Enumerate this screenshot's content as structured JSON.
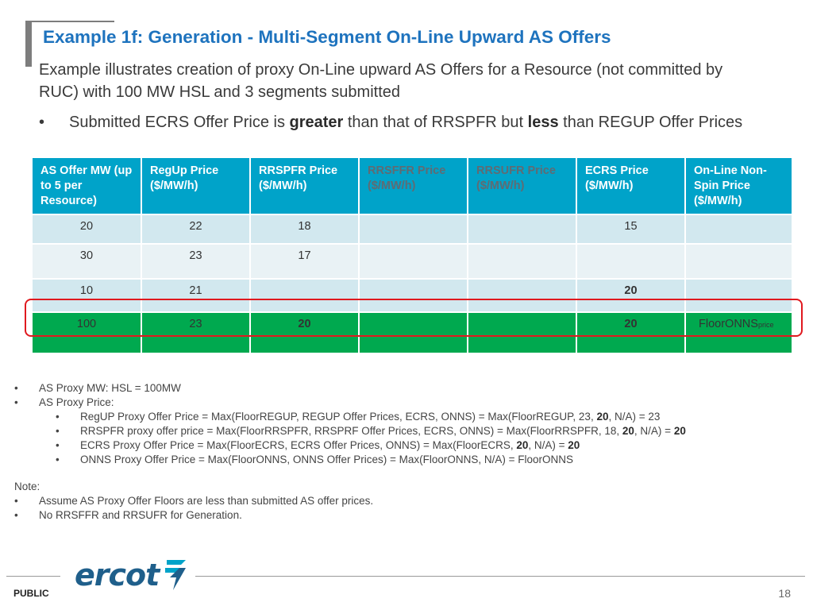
{
  "title": "Example 1f: Generation - Multi-Segment On-Line Upward AS Offers",
  "subtitle": "Example illustrates creation of proxy On-Line upward AS Offers for a Resource (not committed by RUC) with 100 MW HSL and 3 segments submitted",
  "bullet": {
    "part1": "Submitted ECRS Offer Price is ",
    "bold1": "greater",
    "part2": " than that of RRSPFR but ",
    "bold2": "less",
    "part3": " than REGUP Offer Prices"
  },
  "table": {
    "headers": [
      "AS Offer MW (up to 5 per Resource)",
      "RegUp Price ($/MW/h)",
      "RRSPFR Price ($/MW/h)",
      "RRSFFR Price ($/MW/h)",
      "RRSUFR Price ($/MW/h)",
      "ECRS Price ($/MW/h)",
      "On-Line Non-Spin Price ($/MW/h)"
    ],
    "rows": [
      [
        "20",
        "22",
        "18",
        "",
        "",
        "15",
        ""
      ],
      [
        "30",
        "23",
        "17",
        "",
        "",
        "",
        ""
      ],
      [
        "10",
        "21",
        "",
        "",
        "",
        "20",
        ""
      ],
      [
        "100",
        "23",
        "20",
        "",
        "",
        "20",
        "FloorONNS"
      ]
    ],
    "floor_subscript": "price"
  },
  "notes": {
    "b1": "AS Proxy MW: HSL = 100MW",
    "b2": "AS Proxy Price:",
    "sub1_pre": "RegUP Proxy Offer Price = Max(FloorREGUP, REGUP Offer Prices, ECRS, ONNS) = Max(FloorREGUP, 23, ",
    "sub1_bold": "20",
    "sub1_post": ", N/A) = 23",
    "sub2_pre": "RRSPFR proxy offer price = Max(FloorRRSPFR, RRSPRF Offer Prices, ECRS, ONNS) = Max(FloorRRSPFR, 18, ",
    "sub2_bold": "20",
    "sub2_mid": ", N/A) = ",
    "sub2_bold2": "20",
    "sub3_pre": "ECRS Proxy Offer Price = Max(FloorECRS, ECRS Offer Prices, ONNS) = Max(FloorECRS, ",
    "sub3_bold": "20",
    "sub3_mid": ", N/A) = ",
    "sub3_bold2": "20",
    "sub4": "ONNS Proxy Offer Price = Max(FloorONNS, ONNS Offer Prices) = Max(FloorONNS, N/A) = FloorONNS"
  },
  "note_block": {
    "heading": "Note:",
    "items": [
      "Assume AS Proxy Offer Floors are less than submitted AS offer prices.",
      "No RRSFFR and RRSUFR for Generation."
    ]
  },
  "footer": {
    "logo_text": "ercot",
    "label": "PUBLIC",
    "page": "18"
  },
  "colors": {
    "title": "#1e73be",
    "header_bg": "#00a3c9",
    "highlight_row": "#00a94f",
    "highlight_border": "#e0191f"
  }
}
